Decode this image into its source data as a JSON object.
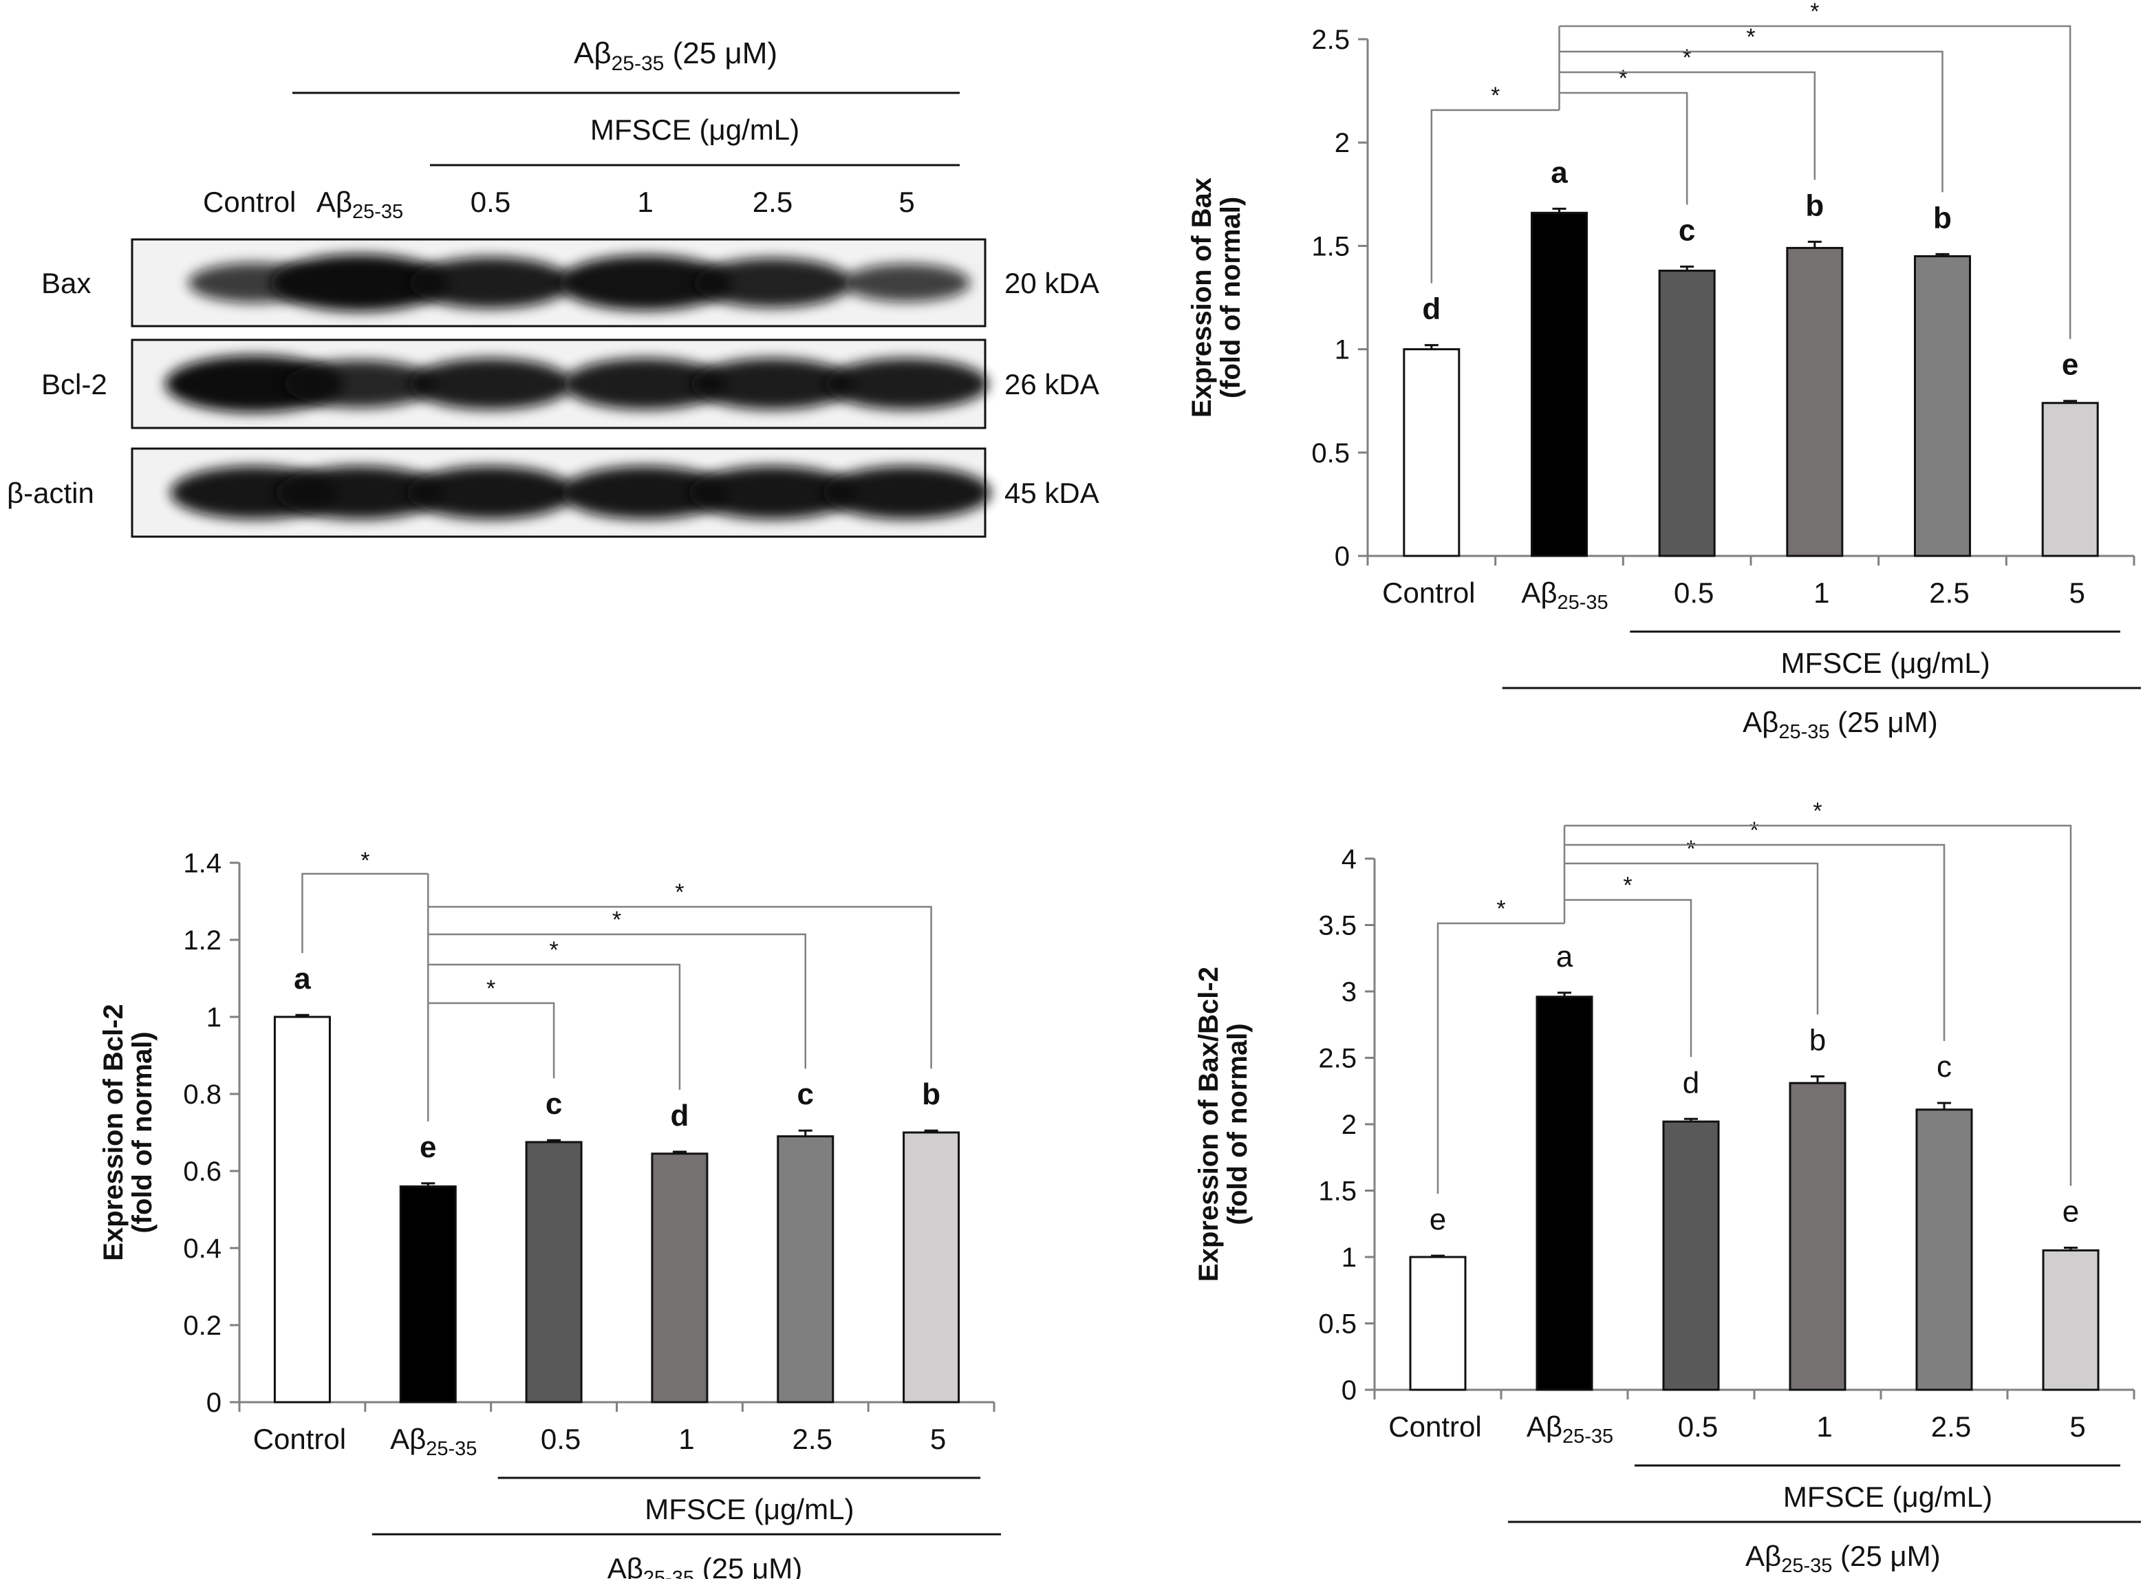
{
  "colors": {
    "control": "#ffffff",
    "abeta": "#000000",
    "mfsce_0_5": "#595959",
    "mfsce_1": "#767171",
    "mfsce_2_5": "#7f7f7f",
    "mfsce_5": "#d0cece",
    "axis": "#808080",
    "text": "#111111"
  },
  "labels": {
    "abeta_base": "Aβ",
    "abeta_sub": "25-35",
    "abeta_dose": "(25 μM)",
    "mfsce": "MFSCE (μg/mL)",
    "star": "*"
  },
  "blot": {
    "lanes": [
      "Control",
      "Aβ25-35",
      "0.5",
      "1",
      "2.5",
      "5"
    ],
    "rows": [
      {
        "protein": "Bax",
        "size": "20 kDA",
        "intensity": [
          0.55,
          1.0,
          0.85,
          0.95,
          0.8,
          0.5
        ]
      },
      {
        "protein": "Bcl-2",
        "size": "26 kDA",
        "intensity": [
          1.0,
          0.75,
          0.85,
          0.85,
          0.85,
          0.85
        ]
      },
      {
        "protein": "β-actin",
        "size": "45 kDA",
        "intensity": [
          0.9,
          0.9,
          0.9,
          0.9,
          0.9,
          0.9
        ]
      }
    ]
  },
  "chart_data": [
    {
      "id": "bax",
      "type": "bar",
      "title": "",
      "ylabel": [
        "Expression of Bax",
        "(fold of normal)"
      ],
      "categories": [
        "Control",
        "Aβ25-35",
        "0.5",
        "1",
        "2.5",
        "5"
      ],
      "values": [
        1.0,
        1.66,
        1.38,
        1.49,
        1.45,
        0.74
      ],
      "errors": [
        0.02,
        0.02,
        0.02,
        0.03,
        0.01,
        0.01
      ],
      "letters": [
        "d",
        "a",
        "c",
        "b",
        "b",
        "e"
      ],
      "letters_bold": true,
      "yticks": [
        "0",
        "0.5",
        "1",
        "1.5",
        "2",
        "2.5"
      ],
      "ylim": [
        0,
        2.5
      ],
      "reference_group": 1
    },
    {
      "id": "bcl2",
      "type": "bar",
      "title": "",
      "ylabel": [
        "Expression of Bcl-2",
        "(fold of normal)"
      ],
      "categories": [
        "Control",
        "Aβ25-35",
        "0.5",
        "1",
        "2.5",
        "5"
      ],
      "values": [
        1.0,
        0.56,
        0.675,
        0.645,
        0.69,
        0.7
      ],
      "errors": [
        0.005,
        0.008,
        0.005,
        0.005,
        0.015,
        0.005
      ],
      "letters": [
        "a",
        "e",
        "c",
        "d",
        "c",
        "b"
      ],
      "letters_bold": true,
      "yticks": [
        "0",
        "0.2",
        "0.4",
        "0.6",
        "0.8",
        "1",
        "1.2",
        "1.4"
      ],
      "ylim": [
        0,
        1.4
      ],
      "reference_group": 1
    },
    {
      "id": "ratio",
      "type": "bar",
      "title": "",
      "ylabel": [
        "Expression of Bax/Bcl-2",
        "(fold of normal)"
      ],
      "categories": [
        "Control",
        "Aβ25-35",
        "0.5",
        "1",
        "2.5",
        "5"
      ],
      "values": [
        1.0,
        2.96,
        2.02,
        2.31,
        2.11,
        1.05
      ],
      "errors": [
        0.01,
        0.03,
        0.02,
        0.05,
        0.05,
        0.02
      ],
      "letters": [
        "e",
        "a",
        "d",
        "b",
        "c",
        "e"
      ],
      "letters_bold": false,
      "yticks": [
        "0",
        "0.5",
        "1",
        "1.5",
        "2",
        "2.5",
        "3",
        "3.5",
        "4"
      ],
      "ylim": [
        0,
        4
      ],
      "reference_group": 1
    }
  ]
}
